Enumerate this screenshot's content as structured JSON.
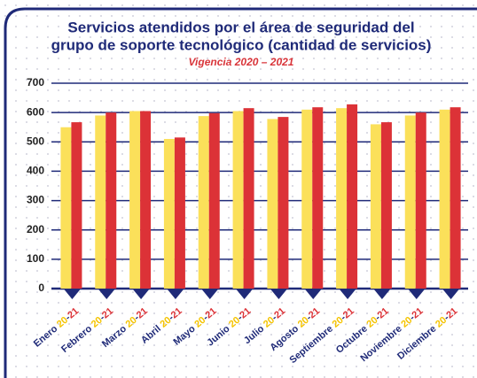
{
  "chart_data": {
    "type": "bar",
    "title_lines": [
      "Servicios atendidos por el área de seguridad del",
      "grupo de soporte tecnológico (cantidad de servicios)"
    ],
    "subtitle": "Vigencia 2020 – 2021",
    "categories": [
      "Enero",
      "Febrero",
      "Marzo",
      "Abril",
      "Mayo",
      "Junio",
      "Julio",
      "Agosto",
      "Septiembre",
      "Octubre",
      "Noviembre",
      "Diciembre"
    ],
    "category_suffix": {
      "first": "20",
      "separator": "-",
      "second": "21"
    },
    "series": [
      {
        "color": "#fbe05a",
        "values": [
          550,
          590,
          605,
          510,
          588,
          605,
          578,
          610,
          615,
          560,
          590,
          610
        ]
      },
      {
        "color": "#dc3237",
        "values": [
          567,
          600,
          605,
          515,
          598,
          615,
          585,
          618,
          628,
          567,
          600,
          618
        ]
      }
    ],
    "ylim": [
      0,
      700
    ],
    "yticks": [
      0,
      100,
      200,
      300,
      400,
      500,
      600,
      700
    ],
    "grid": true
  }
}
